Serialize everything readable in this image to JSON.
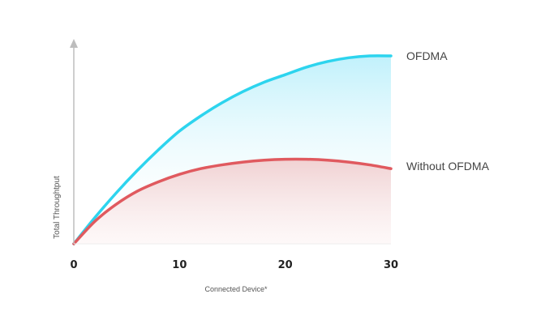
{
  "chart_data": {
    "type": "area",
    "title": "",
    "xlabel": "Connected Device*",
    "ylabel": "Total Throughtput",
    "x_ticks": [
      0,
      10,
      20,
      30
    ],
    "xlim": [
      0,
      30
    ],
    "ylim": [
      0,
      100
    ],
    "grid": false,
    "legend": "inline-right",
    "x": [
      0,
      2,
      4,
      6,
      8,
      10,
      12,
      14,
      16,
      18,
      20,
      22,
      24,
      26,
      28,
      30
    ],
    "series": [
      {
        "name": "OFDMA",
        "color": "#2dd4ee",
        "fill": "#c9f3fc",
        "values": [
          0,
          14,
          27,
          39,
          50,
          60,
          68,
          75,
          81,
          86,
          90,
          94,
          97,
          99,
          100,
          100
        ]
      },
      {
        "name": "Without OFDMA",
        "color": "#e05a5f",
        "fill": "#f6dcdc",
        "values": [
          0,
          12,
          21,
          28,
          33,
          37,
          40,
          42,
          43.5,
          44.5,
          45,
          45,
          44.5,
          43.5,
          42,
          40
        ]
      }
    ]
  }
}
